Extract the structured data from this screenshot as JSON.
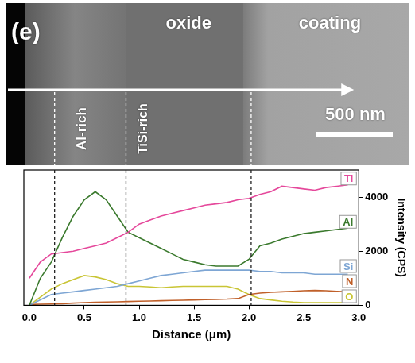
{
  "chart_data": {
    "type": "line",
    "annotations": {
      "panel_label": "(e)",
      "regions": [
        "oxide",
        "coating"
      ],
      "phases": [
        "Al-rich",
        "TiSi-rich"
      ],
      "scale_bar": "500 nm"
    },
    "boundaries": [
      0.23,
      0.88,
      2.02
    ],
    "x_label": "Distance (μm)",
    "y_label": "Intensity (CPS)",
    "x": [
      0,
      0.1,
      0.2,
      0.3,
      0.4,
      0.5,
      0.6,
      0.7,
      0.8,
      0.9,
      1.0,
      1.1,
      1.2,
      1.3,
      1.4,
      1.5,
      1.6,
      1.7,
      1.8,
      1.9,
      2.0,
      2.1,
      2.2,
      2.3,
      2.4,
      2.5,
      2.6,
      2.7,
      2.8,
      2.9
    ],
    "series": [
      {
        "name": "Ti",
        "color": "#e5489b",
        "values": [
          1000,
          1600,
          1900,
          1950,
          2000,
          2100,
          2200,
          2300,
          2500,
          2700,
          3000,
          3150,
          3300,
          3400,
          3500,
          3600,
          3700,
          3750,
          3800,
          3900,
          3950,
          4100,
          4200,
          4400,
          4350,
          4300,
          4250,
          4350,
          4400,
          4450
        ]
      },
      {
        "name": "Al",
        "color": "#3b7a2e",
        "values": [
          0,
          1000,
          1600,
          2500,
          3300,
          3900,
          4200,
          3900,
          3300,
          2700,
          2500,
          2300,
          2100,
          1900,
          1700,
          1600,
          1500,
          1450,
          1450,
          1450,
          1700,
          2200,
          2300,
          2450,
          2550,
          2650,
          2700,
          2750,
          2800,
          2850
        ]
      },
      {
        "name": "Si",
        "color": "#7ea6d4",
        "values": [
          0,
          200,
          400,
          450,
          500,
          550,
          600,
          650,
          700,
          800,
          900,
          1000,
          1100,
          1150,
          1200,
          1250,
          1300,
          1300,
          1300,
          1300,
          1300,
          1250,
          1250,
          1200,
          1200,
          1200,
          1150,
          1150,
          1150,
          1150
        ]
      },
      {
        "name": "N",
        "color": "#c0602a",
        "values": [
          30,
          40,
          50,
          60,
          80,
          100,
          110,
          120,
          130,
          140,
          150,
          160,
          170,
          180,
          190,
          200,
          210,
          220,
          230,
          250,
          400,
          450,
          480,
          500,
          520,
          540,
          550,
          540,
          520,
          500
        ]
      },
      {
        "name": "O",
        "color": "#c9c535",
        "values": [
          0,
          300,
          600,
          800,
          950,
          1100,
          1050,
          950,
          800,
          700,
          700,
          680,
          650,
          680,
          700,
          700,
          700,
          700,
          700,
          600,
          400,
          250,
          200,
          150,
          120,
          100,
          100,
          100,
          100,
          100
        ]
      }
    ],
    "xlim": [
      -0.05,
      3.0
    ],
    "xticks": [
      {
        "value": 0,
        "label": "0.0"
      },
      0.5,
      {
        "value": 1,
        "label": "1.0"
      },
      1.5,
      {
        "value": 2,
        "label": "2.0"
      },
      2.5,
      {
        "value": 3,
        "label": "3.0"
      }
    ],
    "ylim": [
      0,
      5000
    ],
    "yticks": [
      0,
      2000,
      4000
    ],
    "grid": false,
    "legend": "right"
  }
}
